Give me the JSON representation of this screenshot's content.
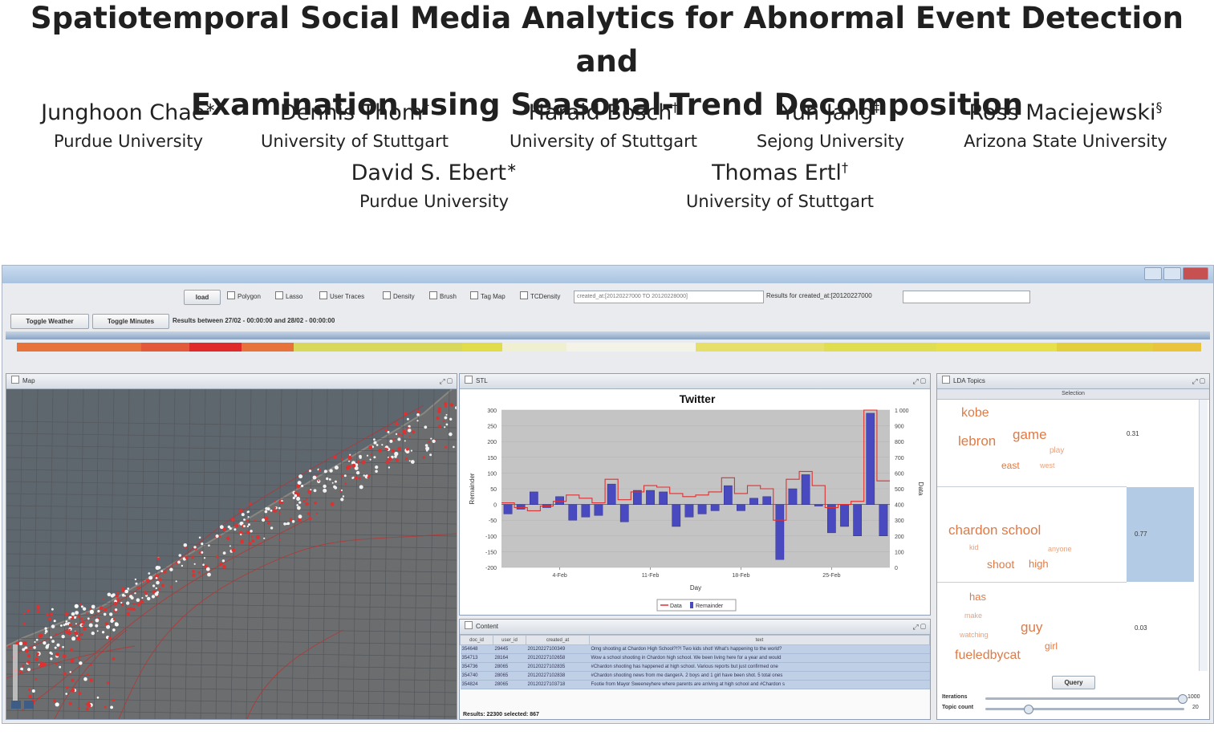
{
  "paper": {
    "title_line1": "Spatiotemporal Social Media Analytics for Abnormal Event Detection and",
    "title_line2": "Examination using Seasonal-Trend Decomposition",
    "authors": [
      {
        "name": "Junghoon Chae",
        "mark": "∗",
        "affiliation": "Purdue University"
      },
      {
        "name": "Dennis Thom",
        "mark": "†",
        "affiliation": "University of Stuttgart"
      },
      {
        "name": "Harald Bosch",
        "mark": "†",
        "affiliation": "University of Stuttgart"
      },
      {
        "name": "Yun Jang",
        "mark": "‡",
        "affiliation": "Sejong University"
      },
      {
        "name": "Ross Maciejewski",
        "mark": "§",
        "affiliation": "Arizona State University"
      },
      {
        "name": "David S. Ebert",
        "mark": "∗",
        "affiliation": "Purdue University"
      },
      {
        "name": "Thomas Ertl",
        "mark": "†",
        "affiliation": "University of Stuttgart"
      }
    ]
  },
  "app": {
    "toolbar": {
      "load_label": "load",
      "checks": [
        "Polygon",
        "Lasso",
        "User Traces",
        "Density",
        "Brush",
        "Tag Map",
        "TCDensity"
      ],
      "query_field": "created_at:[20120227000 TO 20120228000]",
      "results_label": "Results for created_at:[20120227000",
      "toggle_weather": "Toggle Weather",
      "toggle_minutes": "Toggle Minutes",
      "results_between": "Results between 27/02 - 00:00:00 and 28/02 - 00:00:00"
    },
    "heatstrip_colors": [
      "#e8733a",
      "#e8733a",
      "#e25a3a",
      "#e02a2a",
      "#e8733a",
      "#d8d95a",
      "#e0dc4a",
      "#f0f0d0",
      "#f3f3e8",
      "#e6e06a",
      "#dede50",
      "#e8e04a",
      "#e3cf3c",
      "#e9c43c"
    ],
    "panels": {
      "map_title": "Map",
      "stl_title": "STL",
      "content_title": "Content",
      "lda_title": "LDA Topics"
    },
    "chart_data": {
      "type": "bar",
      "title": "Twitter",
      "xlabel": "Day",
      "ylabel": "Remainder",
      "y2label": "Data",
      "ylim": [
        -200,
        300
      ],
      "y2lim": [
        0,
        1000
      ],
      "yticks": [
        "300",
        "250",
        "200",
        "150",
        "100",
        "50",
        "0",
        "-50",
        "-100",
        "-150",
        "-200"
      ],
      "y2ticks": [
        "1 000",
        "900",
        "800",
        "700",
        "600",
        "500",
        "400",
        "300",
        "200",
        "100",
        "0"
      ],
      "xticks": [
        "4-Feb",
        "11-Feb",
        "18-Feb",
        "25-Feb"
      ],
      "legend": [
        "Data",
        "Remainder"
      ],
      "colors": {
        "remainder": "#4a4ac0",
        "data": "#e03030"
      },
      "remainder": [
        -30,
        -15,
        40,
        -10,
        25,
        -50,
        -40,
        -35,
        65,
        -55,
        45,
        45,
        40,
        -70,
        -40,
        -30,
        -20,
        60,
        -20,
        20,
        25,
        -175,
        50,
        95,
        -5,
        -90,
        -70,
        -100,
        290,
        -100
      ],
      "data": [
        410,
        380,
        360,
        390,
        420,
        460,
        440,
        410,
        560,
        430,
        480,
        520,
        510,
        470,
        450,
        460,
        480,
        570,
        470,
        520,
        500,
        300,
        560,
        610,
        520,
        380,
        400,
        420,
        1000,
        550
      ]
    },
    "content": {
      "columns": [
        "doc_id",
        "user_id",
        "created_at",
        "text"
      ],
      "rows": [
        [
          "354648",
          "29445",
          "20120227100349",
          "Omg shooting at Chardon High School?!?! Two kids shot! What's happening to the world?"
        ],
        [
          "354713",
          "28164",
          "20120227102658",
          "Wow a school shooting in Chardon high school. We been living here for a year and would"
        ],
        [
          "354736",
          "28065",
          "20120227102835",
          "#Chardon shooting has happened at high school. Various reports but just confirmed one"
        ],
        [
          "354740",
          "28065",
          "20120227102838",
          "#Chardon shooting news from me dangerA. 2 boys and 1 girl have been shot. 5 total ones"
        ],
        [
          "354824",
          "28065",
          "20120227103718",
          "Footie from Mayor Sweeneyhere where parents are arriving at high school and #Chardon s"
        ]
      ],
      "footer": "Results: 22300 selected: 867"
    },
    "lda": {
      "column_header": "Selection",
      "topics": [
        {
          "words": [
            "kobe",
            "lebron",
            "game",
            "east",
            "play",
            "west"
          ],
          "score": "0.31"
        },
        {
          "words": [
            "chardon school",
            "kid",
            "shoot",
            "high",
            "anyone"
          ],
          "score": "0.77"
        },
        {
          "words": [
            "has",
            "make",
            "watching",
            "guy",
            "girl",
            "fueledbycat"
          ],
          "score": "0.03"
        }
      ],
      "query_label": "Query",
      "iterations_label": "Iterations",
      "topic_count_label": "Topic count",
      "iterations_value": "1000",
      "topic_count_value": "20"
    }
  }
}
